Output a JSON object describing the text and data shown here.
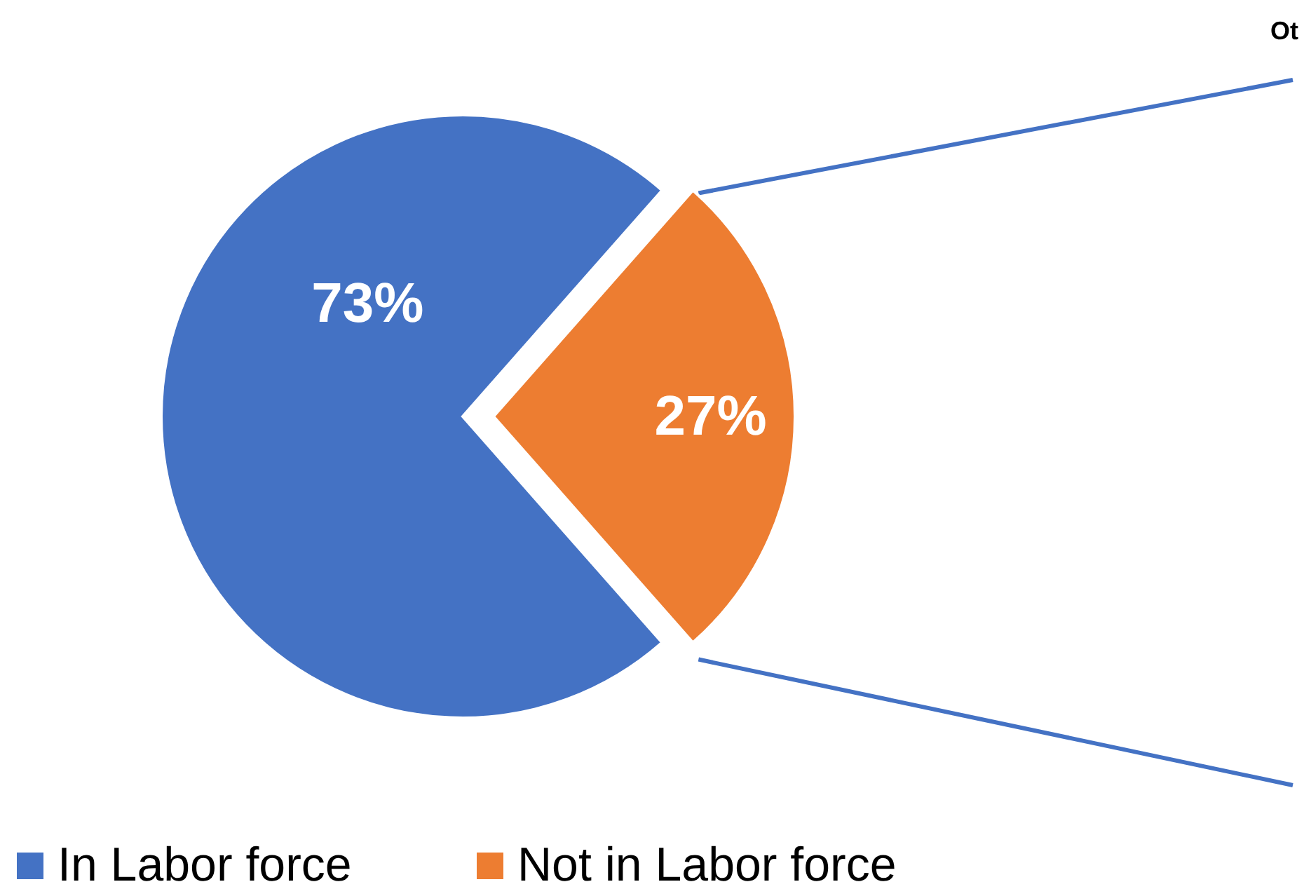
{
  "chart_data": {
    "type": "pie",
    "categories": [
      "In Labor force",
      "Not in Labor force"
    ],
    "values": [
      73,
      27
    ],
    "colors": [
      "#4472c4",
      "#ed7d31"
    ],
    "value_labels": [
      "73%",
      "27%"
    ],
    "legend": "bottom",
    "annotations": [
      "Ot"
    ]
  }
}
